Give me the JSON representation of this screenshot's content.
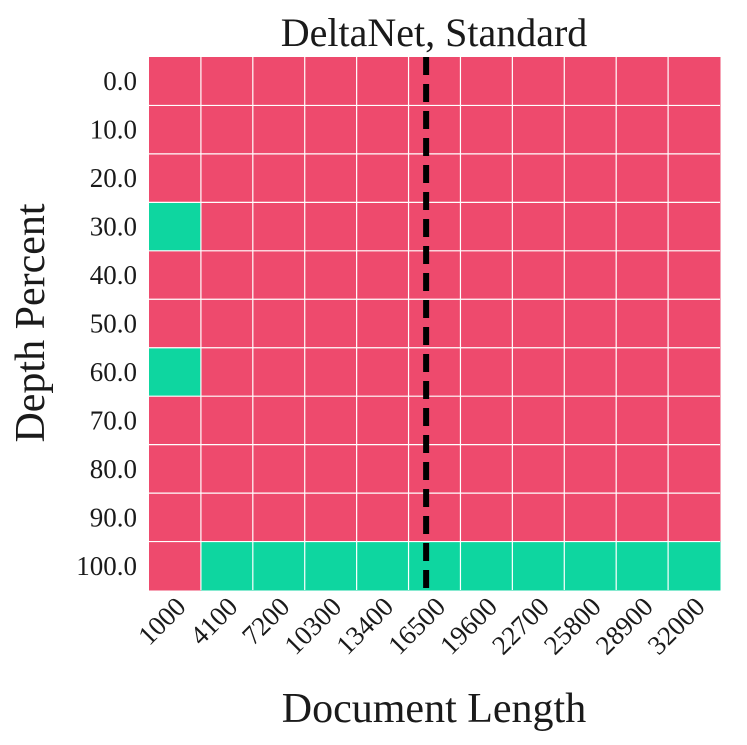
{
  "chart_data": {
    "type": "heatmap",
    "title": "DeltaNet, Standard",
    "xlabel": "Document Length",
    "ylabel": "Depth Percent",
    "x_categories": [
      "1000",
      "4100",
      "7200",
      "10300",
      "13400",
      "16500",
      "19600",
      "22700",
      "25800",
      "28900",
      "32000"
    ],
    "y_categories": [
      "0.0",
      "10.0",
      "20.0",
      "30.0",
      "40.0",
      "50.0",
      "60.0",
      "70.0",
      "80.0",
      "90.0",
      "100.0"
    ],
    "values": [
      [
        0,
        0,
        0,
        0,
        0,
        0,
        0,
        0,
        0,
        0,
        0
      ],
      [
        0,
        0,
        0,
        0,
        0,
        0,
        0,
        0,
        0,
        0,
        0
      ],
      [
        0,
        0,
        0,
        0,
        0,
        0,
        0,
        0,
        0,
        0,
        0
      ],
      [
        1,
        0,
        0,
        0,
        0,
        0,
        0,
        0,
        0,
        0,
        0
      ],
      [
        0,
        0,
        0,
        0,
        0,
        0,
        0,
        0,
        0,
        0,
        0
      ],
      [
        0,
        0,
        0,
        0,
        0,
        0,
        0,
        0,
        0,
        0,
        0
      ],
      [
        1,
        0,
        0,
        0,
        0,
        0,
        0,
        0,
        0,
        0,
        0
      ],
      [
        0,
        0,
        0,
        0,
        0,
        0,
        0,
        0,
        0,
        0,
        0
      ],
      [
        0,
        0,
        0,
        0,
        0,
        0,
        0,
        0,
        0,
        0,
        0
      ],
      [
        0,
        0,
        0,
        0,
        0,
        0,
        0,
        0,
        0,
        0,
        0
      ],
      [
        0,
        1,
        1,
        1,
        1,
        1,
        1,
        1,
        1,
        1,
        1
      ]
    ],
    "color_low": "#ee4a6d",
    "color_high": "#0ed6a0",
    "grid_line_color": "#ffffff",
    "reference_line": {
      "x": 16000,
      "style": "dashed",
      "color": "#000000"
    }
  }
}
